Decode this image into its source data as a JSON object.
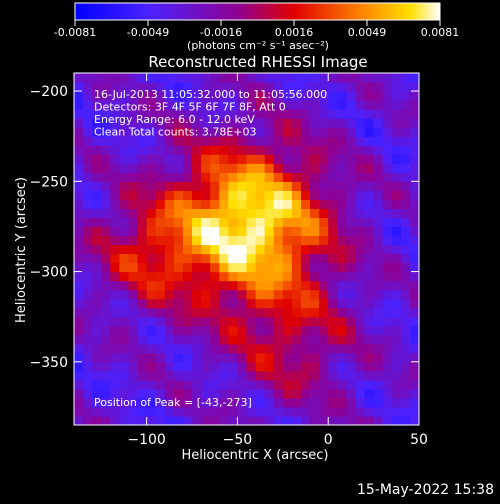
{
  "chart_data": {
    "type": "heatmap",
    "title": "Reconstructed RHESSI Image",
    "xlabel": "Heliocentric X (arcsec)",
    "ylabel": "Heliocentric Y (arcsec)",
    "xlim": [
      -140,
      50
    ],
    "ylim": [
      -385,
      -190
    ],
    "x_ticks": [
      "-100",
      "-50",
      "0",
      "50"
    ],
    "y_ticks": [
      "-200",
      "-250",
      "-300",
      "-350"
    ],
    "colorbar": {
      "tick_labels": [
        "-0.0081",
        "-0.0049",
        "-0.0016",
        "0.0016",
        "0.0049",
        "0.0081"
      ],
      "range": [
        -0.0081,
        0.0081
      ],
      "units_label": "(photons cm⁻² s⁻¹ asec⁻²)"
    },
    "info_lines": [
      "16-Jul-2013 11:05:32.000 to 11:05:56.000",
      "Detectors: 3F 4F 5F 6F 7F 8F, Att 0",
      "Energy Range: 6.0 - 12.0 keV",
      "Clean     Total counts: 3.78E+03"
    ],
    "peak_label": "Position of Peak = [-43,-273]",
    "peak": [
      -43,
      -273
    ]
  },
  "footer": {
    "date": "15-May-2022 15:38"
  },
  "colors": {
    "background": "#000000",
    "foreground": "#ffffff"
  }
}
